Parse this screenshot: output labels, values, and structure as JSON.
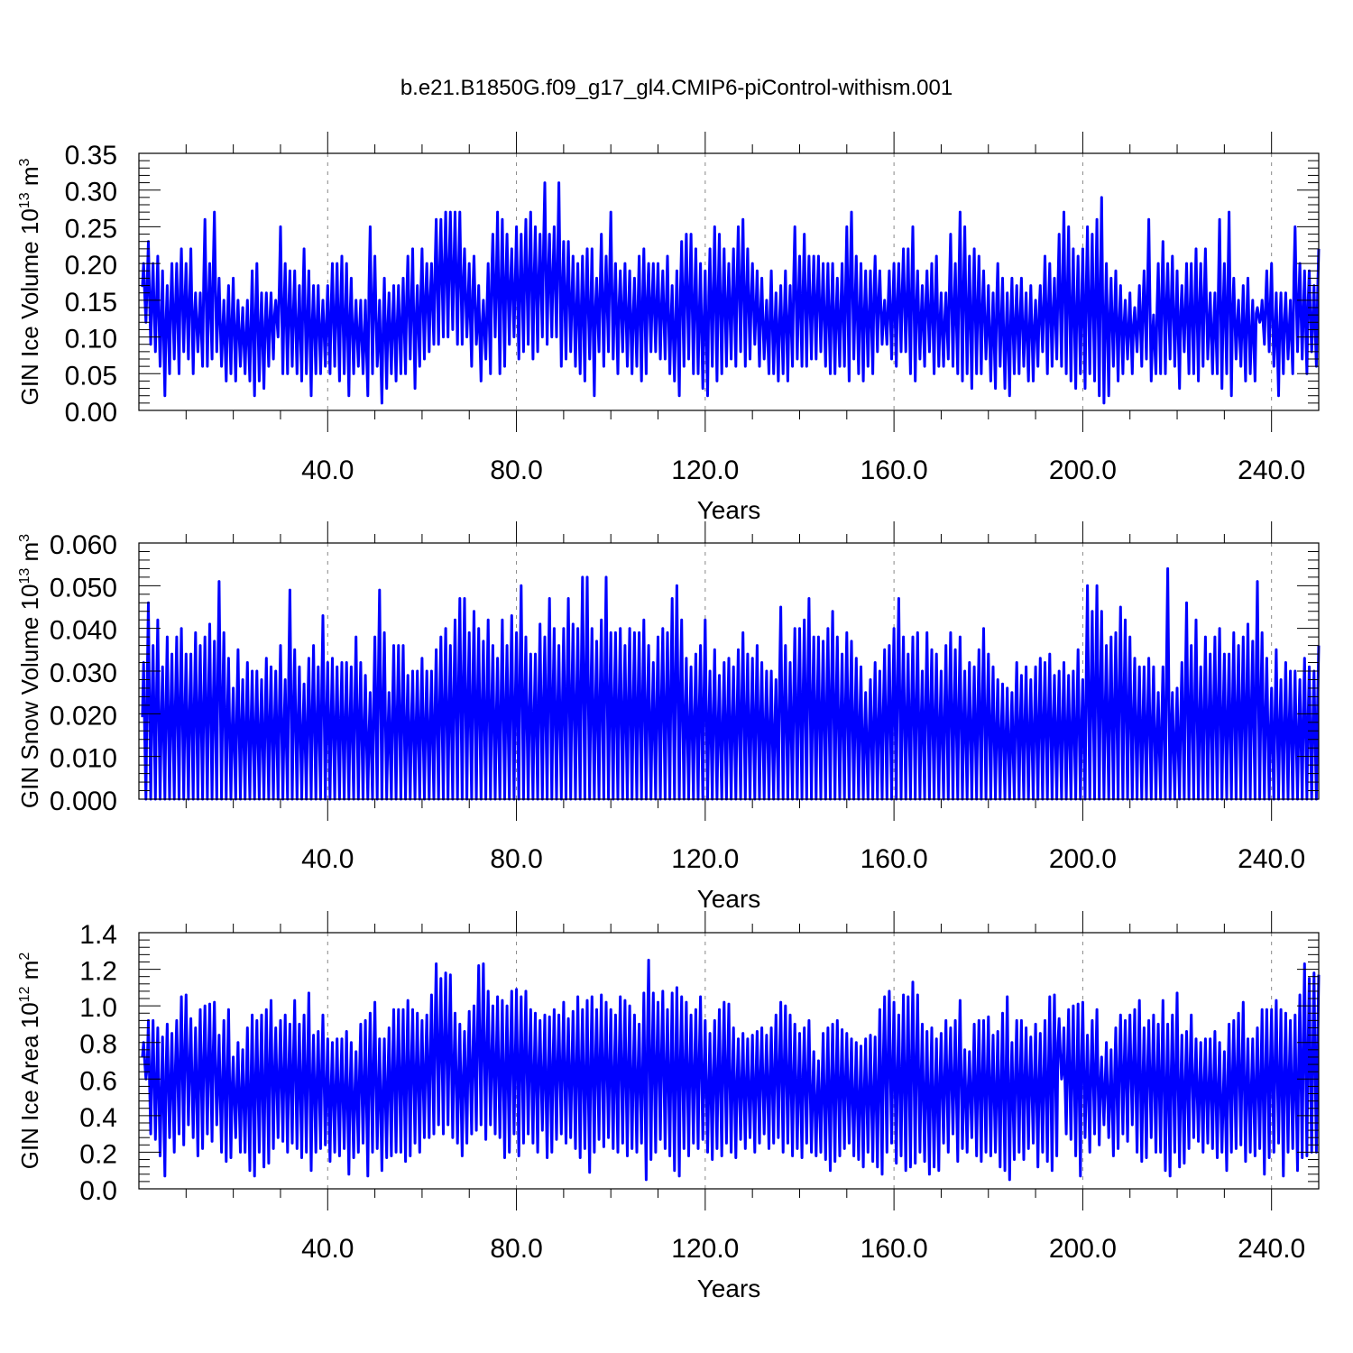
{
  "title": "b.e21.B1850G.f09_g17_gl4.CMIP6-piControl-withism.001",
  "line_color": "#0000ff",
  "chart_data": [
    {
      "type": "line",
      "ylabel_main": "GIN Ice Volume 10",
      "ylabel_exp": "13",
      "ylabel_unit": " m",
      "ylabel_unit_exp": "3",
      "xlabel": "Years",
      "xlim": [
        0,
        250
      ],
      "ylim": [
        0,
        0.35
      ],
      "xticks": [
        40,
        80,
        120,
        160,
        200,
        240
      ],
      "xtick_labels": [
        "40.0",
        "80.0",
        "120.0",
        "160.0",
        "200.0",
        "240.0"
      ],
      "yticks": [
        0,
        0.05,
        0.1,
        0.15,
        0.2,
        0.25,
        0.3,
        0.35
      ],
      "ytick_labels": [
        "0.00",
        "0.05",
        "0.10",
        "0.15",
        "0.20",
        "0.25",
        "0.30",
        "0.35"
      ],
      "annual_max": [
        0.2,
        0.23,
        0.2,
        0.21,
        0.19,
        0.17,
        0.2,
        0.2,
        0.22,
        0.2,
        0.22,
        0.16,
        0.16,
        0.26,
        0.2,
        0.27,
        0.18,
        0.15,
        0.17,
        0.18,
        0.15,
        0.14,
        0.15,
        0.19,
        0.2,
        0.16,
        0.16,
        0.16,
        0.15,
        0.25,
        0.2,
        0.19,
        0.19,
        0.17,
        0.22,
        0.19,
        0.17,
        0.17,
        0.15,
        0.17,
        0.2,
        0.2,
        0.21,
        0.2,
        0.18,
        0.15,
        0.15,
        0.15,
        0.25,
        0.21,
        0.15,
        0.18,
        0.16,
        0.17,
        0.17,
        0.18,
        0.21,
        0.22,
        0.17,
        0.22,
        0.2,
        0.2,
        0.26,
        0.26,
        0.27,
        0.27,
        0.27,
        0.27,
        0.22,
        0.2,
        0.21,
        0.17,
        0.15,
        0.2,
        0.24,
        0.27,
        0.26,
        0.24,
        0.22,
        0.25,
        0.24,
        0.26,
        0.27,
        0.25,
        0.24,
        0.31,
        0.24,
        0.25,
        0.31,
        0.23,
        0.23,
        0.21,
        0.2,
        0.21,
        0.22,
        0.22,
        0.18,
        0.24,
        0.21,
        0.27,
        0.2,
        0.19,
        0.2,
        0.19,
        0.18,
        0.21,
        0.22,
        0.2,
        0.2,
        0.2,
        0.19,
        0.21,
        0.17,
        0.19,
        0.23,
        0.24,
        0.24,
        0.22,
        0.2,
        0.19,
        0.22,
        0.25,
        0.24,
        0.22,
        0.2,
        0.22,
        0.25,
        0.26,
        0.22,
        0.2,
        0.19,
        0.18,
        0.15,
        0.19,
        0.16,
        0.17,
        0.19,
        0.17,
        0.25,
        0.21,
        0.24,
        0.21,
        0.21,
        0.21,
        0.2,
        0.2,
        0.2,
        0.18,
        0.2,
        0.25,
        0.27,
        0.21,
        0.2,
        0.19,
        0.19,
        0.21,
        0.19,
        0.15,
        0.19,
        0.2,
        0.2,
        0.22,
        0.22,
        0.25,
        0.19,
        0.17,
        0.19,
        0.2,
        0.21,
        0.16,
        0.16,
        0.24,
        0.2,
        0.27,
        0.25,
        0.21,
        0.22,
        0.21,
        0.19,
        0.17,
        0.16,
        0.2,
        0.18,
        0.16,
        0.18,
        0.17,
        0.18,
        0.16,
        0.17,
        0.15,
        0.17,
        0.21,
        0.2,
        0.18,
        0.24,
        0.27,
        0.25,
        0.22,
        0.21,
        0.22,
        0.25,
        0.24,
        0.26,
        0.29,
        0.2,
        0.18,
        0.19,
        0.17,
        0.15,
        0.16,
        0.14,
        0.17,
        0.19,
        0.26,
        0.13
      ],
      "annual_min": [
        0.12,
        0.09,
        0.08,
        0.06,
        0.02,
        0.05,
        0.07,
        0.05,
        0.08,
        0.07,
        0.05,
        0.08,
        0.06,
        0.06,
        0.07,
        0.08,
        0.06,
        0.04,
        0.05,
        0.04,
        0.06,
        0.05,
        0.04,
        0.02,
        0.04,
        0.03,
        0.06,
        0.07,
        0.1,
        0.05,
        0.05,
        0.06,
        0.05,
        0.04,
        0.05,
        0.02,
        0.05,
        0.05,
        0.06,
        0.05,
        0.06,
        0.04,
        0.05,
        0.02,
        0.05,
        0.06,
        0.05,
        0.02,
        0.05,
        0.06,
        0.01,
        0.03,
        0.05,
        0.04,
        0.05,
        0.05,
        0.07,
        0.03,
        0.06,
        0.07,
        0.08,
        0.09,
        0.09,
        0.1,
        0.1,
        0.11,
        0.09,
        0.09,
        0.1,
        0.06,
        0.09,
        0.04,
        0.07,
        0.05,
        0.1,
        0.05,
        0.06,
        0.09,
        0.1,
        0.07,
        0.08,
        0.09,
        0.07,
        0.08,
        0.1,
        0.09,
        0.1,
        0.1,
        0.06,
        0.07,
        0.08,
        0.06,
        0.05,
        0.04,
        0.07,
        0.02,
        0.08,
        0.06,
        0.08,
        0.07,
        0.05,
        0.08,
        0.06,
        0.05,
        0.06,
        0.04,
        0.05,
        0.08,
        0.08,
        0.07,
        0.07,
        0.05,
        0.04,
        0.02,
        0.06,
        0.07,
        0.05,
        0.05,
        0.03,
        0.02,
        0.06,
        0.04,
        0.05,
        0.06,
        0.07,
        0.06,
        0.08,
        0.06,
        0.07,
        0.09,
        0.06,
        0.07,
        0.05,
        0.05,
        0.04,
        0.05,
        0.04,
        0.06,
        0.07,
        0.06,
        0.06,
        0.07,
        0.07,
        0.08,
        0.06,
        0.05,
        0.05,
        0.06,
        0.06,
        0.04,
        0.07,
        0.05,
        0.04,
        0.06,
        0.05,
        0.08,
        0.09,
        0.09,
        0.07,
        0.06,
        0.08,
        0.08,
        0.05,
        0.04,
        0.07,
        0.06,
        0.08,
        0.05,
        0.06,
        0.06,
        0.07,
        0.06,
        0.05,
        0.04,
        0.05,
        0.03,
        0.05,
        0.05,
        0.07,
        0.04,
        0.03,
        0.06,
        0.03,
        0.02,
        0.05,
        0.05,
        0.06,
        0.04,
        0.04,
        0.06,
        0.08,
        0.05,
        0.06,
        0.07,
        0.06,
        0.05,
        0.04,
        0.03,
        0.05,
        0.03,
        0.05,
        0.04,
        0.02,
        0.01,
        0.02,
        0.06,
        0.04,
        0.05,
        0.07,
        0.05,
        0.08,
        0.06,
        0.07,
        0.04,
        0.05,
        0.05,
        0.05,
        0.07,
        0.06,
        0.03,
        0.08,
        0.05,
        0.05,
        0.04,
        0.06,
        0.07,
        0.05,
        0.05,
        0.03,
        0.05,
        0.02,
        0.07,
        0.06,
        0.04,
        0.05,
        0.04
      ]
    },
    {
      "type": "line",
      "ylabel_main": "GIN Snow Volume 10",
      "ylabel_exp": "13",
      "ylabel_unit": " m",
      "ylabel_unit_exp": "3",
      "xlabel": "Years",
      "xlim": [
        0,
        250
      ],
      "ylim": [
        0,
        0.06
      ],
      "xticks": [
        40,
        80,
        120,
        160,
        200,
        240
      ],
      "xtick_labels": [
        "40.0",
        "80.0",
        "120.0",
        "160.0",
        "200.0",
        "240.0"
      ],
      "yticks": [
        0,
        0.01,
        0.02,
        0.03,
        0.04,
        0.05,
        0.06
      ],
      "ytick_labels": [
        "0.000",
        "0.010",
        "0.020",
        "0.030",
        "0.040",
        "0.050",
        "0.060"
      ],
      "annual_max": [
        0.032,
        0.046,
        0.036,
        0.042,
        0.031,
        0.038,
        0.034,
        0.038,
        0.04,
        0.034,
        0.034,
        0.039,
        0.036,
        0.038,
        0.041,
        0.037,
        0.051,
        0.039,
        0.033,
        0.026,
        0.035,
        0.028,
        0.032,
        0.03,
        0.03,
        0.028,
        0.033,
        0.031,
        0.03,
        0.036,
        0.028,
        0.049,
        0.035,
        0.031,
        0.027,
        0.033,
        0.036,
        0.031,
        0.043,
        0.032,
        0.033,
        0.031,
        0.032,
        0.032,
        0.031,
        0.038,
        0.032,
        0.029,
        0.025,
        0.038,
        0.049,
        0.039,
        0.025,
        0.036,
        0.036,
        0.036,
        0.029,
        0.03,
        0.03,
        0.033,
        0.03,
        0.03,
        0.035,
        0.038,
        0.04,
        0.036,
        0.042,
        0.047,
        0.047,
        0.039,
        0.044,
        0.04,
        0.037,
        0.042,
        0.036,
        0.033,
        0.042,
        0.036,
        0.043,
        0.039,
        0.05,
        0.038,
        0.034,
        0.034,
        0.041,
        0.038,
        0.047,
        0.04,
        0.036,
        0.04,
        0.047,
        0.041,
        0.04,
        0.052,
        0.052,
        0.04,
        0.037,
        0.042,
        0.052,
        0.039,
        0.039,
        0.04,
        0.036,
        0.04,
        0.039,
        0.039,
        0.042,
        0.036,
        0.032,
        0.038,
        0.04,
        0.039,
        0.047,
        0.05,
        0.042,
        0.033,
        0.031,
        0.034,
        0.036,
        0.042,
        0.03,
        0.035,
        0.029,
        0.032,
        0.033,
        0.031,
        0.035,
        0.039,
        0.034,
        0.033,
        0.036,
        0.032,
        0.03,
        0.03,
        0.028,
        0.045,
        0.036,
        0.032,
        0.04,
        0.04,
        0.042,
        0.047,
        0.038,
        0.038,
        0.037,
        0.04,
        0.044,
        0.038,
        0.034,
        0.039,
        0.037,
        0.033,
        0.031,
        0.025,
        0.028,
        0.032,
        0.03,
        0.035,
        0.036,
        0.04,
        0.047,
        0.038,
        0.034,
        0.038,
        0.039,
        0.03,
        0.039,
        0.035,
        0.034,
        0.03,
        0.036,
        0.039,
        0.035,
        0.038,
        0.03,
        0.032,
        0.031,
        0.035,
        0.04,
        0.034,
        0.031,
        0.028,
        0.027,
        0.026,
        0.025,
        0.032,
        0.029,
        0.031,
        0.028,
        0.031,
        0.033,
        0.032,
        0.034,
        0.029,
        0.03,
        0.032,
        0.029,
        0.03,
        0.035,
        0.028,
        0.05,
        0.044,
        0.05,
        0.044,
        0.036,
        0.038,
        0.039,
        0.045,
        0.042,
        0.038,
        0.033,
        0.031,
        0.031,
        0.033,
        0.031,
        0.025,
        0.031,
        0.054,
        0.025,
        0.026
      ],
      "annual_min": [
        0
      ]
    },
    {
      "type": "line",
      "ylabel_main": "GIN Ice Area 10",
      "ylabel_exp": "12",
      "ylabel_unit": " m",
      "ylabel_unit_exp": "2",
      "xlabel": "Years",
      "xlim": [
        0,
        250
      ],
      "ylim": [
        0,
        1.4
      ],
      "xticks": [
        40,
        80,
        120,
        160,
        200,
        240
      ],
      "xtick_labels": [
        "40.0",
        "80.0",
        "120.0",
        "160.0",
        "200.0",
        "240.0"
      ],
      "yticks": [
        0,
        0.2,
        0.4,
        0.6,
        0.8,
        1.0,
        1.2,
        1.4
      ],
      "ytick_labels": [
        "0.0",
        "0.2",
        "0.4",
        "0.6",
        "0.8",
        "1.0",
        "1.2",
        "1.4"
      ],
      "annual_max": [
        0.8,
        0.92,
        0.92,
        0.88,
        0.83,
        0.9,
        0.85,
        0.92,
        1.05,
        1.06,
        0.93,
        0.88,
        0.98,
        1.0,
        1.01,
        1.02,
        0.84,
        0.92,
        0.98,
        0.72,
        0.8,
        0.76,
        0.88,
        0.95,
        0.92,
        0.95,
        0.98,
        1.03,
        0.88,
        0.92,
        0.95,
        0.9,
        1.03,
        0.9,
        0.95,
        1.07,
        0.84,
        0.86,
        0.95,
        0.82,
        0.8,
        0.82,
        0.82,
        0.86,
        0.8,
        0.75,
        0.9,
        0.92,
        0.96,
        1.02,
        0.82,
        0.82,
        0.88,
        0.98,
        0.98,
        0.98,
        1.03,
        0.98,
        0.96,
        0.92,
        0.95,
        1.06,
        1.23,
        1.15,
        1.18,
        1.17,
        0.96,
        0.9,
        0.86,
        0.97,
        1.0,
        1.22,
        1.23,
        1.08,
        1.0,
        1.05,
        1.03,
        1.0,
        1.08,
        1.09,
        1.05,
        1.08,
        0.98,
        0.96,
        0.92,
        0.95,
        0.94,
        0.98,
        0.95,
        1.02,
        0.93,
        0.97,
        1.05,
        0.98,
        1.03,
        1.05,
        0.98,
        1.06,
        1.02,
        0.98,
        0.95,
        1.05,
        1.03,
        1.0,
        0.95,
        0.9,
        1.07,
        1.25,
        1.07,
        1.02,
        1.08,
        0.98,
        1.07,
        1.1,
        1.05,
        1.02,
        0.95,
        0.98,
        1.05,
        0.92,
        0.85,
        0.92,
        0.98,
        1.02,
        1.01,
        0.88,
        0.82,
        0.85,
        0.82,
        0.84,
        0.86,
        0.88,
        0.84,
        0.88,
        0.95,
        1.02,
        1.0,
        0.95,
        0.9,
        0.85,
        0.88,
        0.92,
        0.75,
        0.7,
        0.85,
        0.88,
        0.9,
        0.92,
        0.87,
        0.85,
        0.82,
        0.8,
        0.78,
        0.82,
        0.84,
        0.83,
        0.98,
        1.05,
        1.08,
        1.02,
        0.95,
        1.06,
        1.05,
        1.13,
        1.06,
        0.9,
        0.86,
        0.88,
        0.82,
        0.85,
        0.92,
        0.88,
        0.92,
        1.03,
        0.76,
        0.75,
        0.9,
        0.92,
        0.92,
        0.94,
        0.84,
        0.86,
        0.96,
        1.05
      ],
      "annual_min": [
        0.6,
        0.3,
        0.27,
        0.18,
        0.07,
        0.28,
        0.2,
        0.3,
        0.24,
        0.35,
        0.28,
        0.18,
        0.22,
        0.3,
        0.26,
        0.35,
        0.2,
        0.15,
        0.17,
        0.28,
        0.2,
        0.2,
        0.1,
        0.07,
        0.2,
        0.12,
        0.14,
        0.22,
        0.28,
        0.26,
        0.2,
        0.25,
        0.22,
        0.17,
        0.2,
        0.1,
        0.2,
        0.22,
        0.24,
        0.15,
        0.2,
        0.18,
        0.22,
        0.08,
        0.17,
        0.2,
        0.25,
        0.07,
        0.2,
        0.22,
        0.1,
        0.17,
        0.18,
        0.2,
        0.2,
        0.15,
        0.18,
        0.25,
        0.2,
        0.28,
        0.28,
        0.3,
        0.35,
        0.3,
        0.35,
        0.28,
        0.25,
        0.18,
        0.25,
        0.3,
        0.32,
        0.35,
        0.27,
        0.35,
        0.3,
        0.28,
        0.17,
        0.2,
        0.3,
        0.18,
        0.25,
        0.3,
        0.25,
        0.2,
        0.32,
        0.17,
        0.2,
        0.27,
        0.3,
        0.25,
        0.28,
        0.22,
        0.17,
        0.22,
        0.09,
        0.2,
        0.27,
        0.23,
        0.28,
        0.22,
        0.2,
        0.25,
        0.18,
        0.22,
        0.2,
        0.25,
        0.05,
        0.16,
        0.2,
        0.27,
        0.22,
        0.18,
        0.1,
        0.07,
        0.22,
        0.18,
        0.25,
        0.22,
        0.27,
        0.2,
        0.16,
        0.22,
        0.18,
        0.25,
        0.2,
        0.17,
        0.27,
        0.22,
        0.28,
        0.2,
        0.25,
        0.3,
        0.22,
        0.25,
        0.28,
        0.2,
        0.25,
        0.18,
        0.22,
        0.17,
        0.25,
        0.2,
        0.18,
        0.2,
        0.16,
        0.1,
        0.15,
        0.18,
        0.22,
        0.25,
        0.18,
        0.16,
        0.12,
        0.2,
        0.15,
        0.12,
        0.08,
        0.2,
        0.25,
        0.14,
        0.18,
        0.1,
        0.12,
        0.14,
        0.2,
        0.15,
        0.08,
        0.12,
        0.1,
        0.25,
        0.2,
        0.3,
        0.15,
        0.22,
        0.2,
        0.28,
        0.18,
        0.15,
        0.2,
        0.18,
        0.2,
        0.12,
        0.1,
        0.05,
        0.16,
        0.2,
        0.16,
        0.22,
        0.25,
        0.12,
        0.2,
        0.15,
        0.1,
        0.18
      ]
    }
  ]
}
